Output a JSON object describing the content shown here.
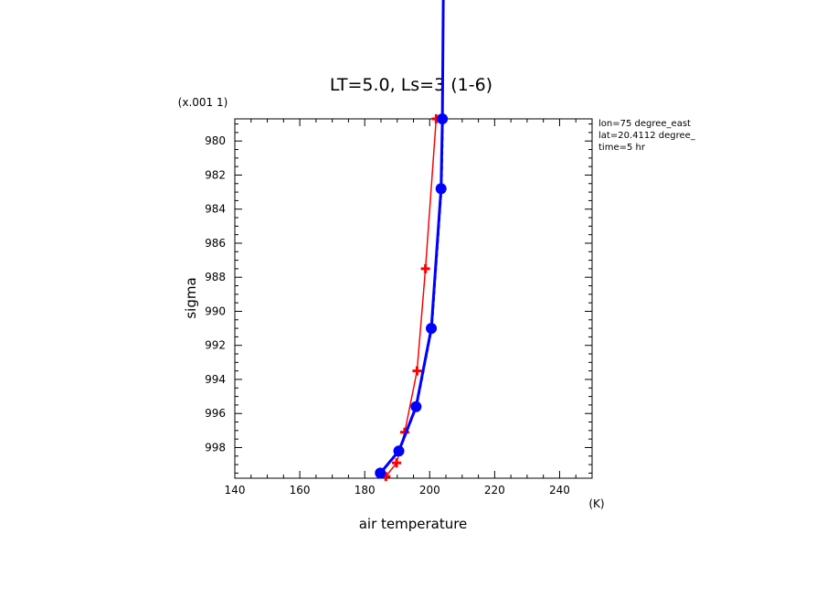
{
  "chart_data": {
    "type": "line",
    "title": "LT=5.0, Ls=3 (1-6)",
    "xlabel": "air temperature",
    "xunit": "(K)",
    "ylabel": "sigma",
    "ymultiplier": "(x.001 1)",
    "xlim": [
      140,
      250
    ],
    "ylim": [
      978.7,
      999.8
    ],
    "y_inverted": true,
    "xticks": [
      "140",
      "160",
      "180",
      "200",
      "220",
      "240"
    ],
    "yticks": [
      "980",
      "982",
      "984",
      "986",
      "988",
      "990",
      "992",
      "994",
      "996",
      "998"
    ],
    "info": [
      "lon=75 degree_east",
      "lat=20.4112 degree_",
      "time=5 hr"
    ],
    "grid": false,
    "series": [
      {
        "color": "#ff0000",
        "marker": "plus",
        "points": [
          [
            186.5,
            999.7
          ],
          [
            189.8,
            998.9
          ],
          [
            192.3,
            997.1
          ],
          [
            196.1,
            993.5
          ],
          [
            198.7,
            987.5
          ],
          [
            202.0,
            978.7
          ]
        ]
      },
      {
        "color": "#0000ff",
        "marker": "circle",
        "points": [
          [
            184.8,
            999.5
          ],
          [
            190.5,
            998.2
          ],
          [
            195.8,
            995.6
          ],
          [
            200.5,
            991.0
          ],
          [
            203.5,
            982.8
          ],
          [
            203.9,
            978.7
          ]
        ]
      }
    ]
  }
}
